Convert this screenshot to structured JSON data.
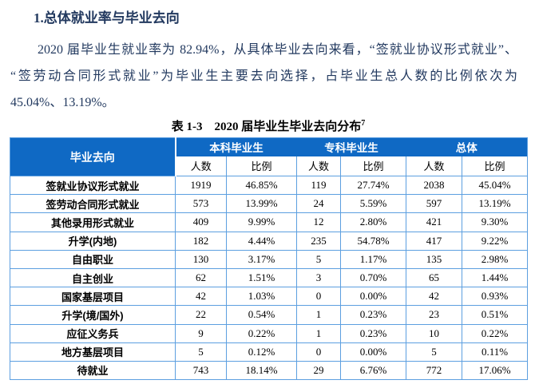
{
  "heading": "1.总体就业率与毕业去向",
  "paragraph": {
    "line1": "2020 届毕业生就业率为 82.94%，从具体毕业去向来看，“签就业协议形式就业”、",
    "line2": "“签劳动合同形式就业”为毕业生主要去向选择，占毕业生总人数的比例依次为",
    "line3": "45.04%、13.19%。"
  },
  "caption": {
    "text": "表 1-3　2020 届毕业生毕业去向分布",
    "superscript": "7"
  },
  "table": {
    "corner_header": "毕业去向",
    "groups": [
      "本科毕业生",
      "专科毕业生",
      "总体"
    ],
    "sub_headers": [
      "人数",
      "比例"
    ],
    "rows": [
      {
        "label": "签就业协议形式就业",
        "values": [
          "1919",
          "46.85%",
          "119",
          "27.74%",
          "2038",
          "45.04%"
        ]
      },
      {
        "label": "签劳动合同形式就业",
        "values": [
          "573",
          "13.99%",
          "24",
          "5.59%",
          "597",
          "13.19%"
        ]
      },
      {
        "label": "其他录用形式就业",
        "values": [
          "409",
          "9.99%",
          "12",
          "2.80%",
          "421",
          "9.30%"
        ]
      },
      {
        "label": "升学(内地)",
        "values": [
          "182",
          "4.44%",
          "235",
          "54.78%",
          "417",
          "9.22%"
        ]
      },
      {
        "label": "自由职业",
        "values": [
          "130",
          "3.17%",
          "5",
          "1.17%",
          "135",
          "2.98%"
        ]
      },
      {
        "label": "自主创业",
        "values": [
          "62",
          "1.51%",
          "3",
          "0.70%",
          "65",
          "1.44%"
        ]
      },
      {
        "label": "国家基层项目",
        "values": [
          "42",
          "1.03%",
          "0",
          "0.00%",
          "42",
          "0.93%"
        ]
      },
      {
        "label": "升学(境/国外)",
        "values": [
          "22",
          "0.54%",
          "1",
          "0.23%",
          "23",
          "0.51%"
        ]
      },
      {
        "label": "应征义务兵",
        "values": [
          "9",
          "0.22%",
          "1",
          "0.23%",
          "10",
          "0.22%"
        ]
      },
      {
        "label": "地方基层项目",
        "values": [
          "5",
          "0.12%",
          "0",
          "0.00%",
          "5",
          "0.11%"
        ]
      },
      {
        "label": "待就业",
        "values": [
          "743",
          "18.14%",
          "29",
          "6.76%",
          "772",
          "17.06%"
        ]
      }
    ]
  },
  "colors": {
    "header_fill": "#0F69C4",
    "border": "#5C9FE0",
    "text_navy": "#22395F"
  }
}
